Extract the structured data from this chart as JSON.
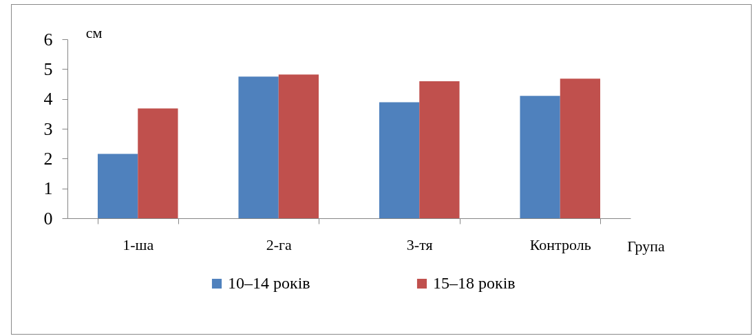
{
  "chart_data": {
    "type": "bar",
    "ylabel": "см",
    "xlabel": "Група",
    "categories": [
      "1-ша",
      "2-га",
      "3-тя",
      "Контроль"
    ],
    "series": [
      {
        "name": "10–14 років",
        "color": "#4f81bd",
        "values": [
          2.16,
          4.75,
          3.89,
          4.1
        ]
      },
      {
        "name": "15–18 років",
        "color": "#c0504d",
        "values": [
          3.68,
          4.82,
          4.59,
          4.68
        ]
      }
    ],
    "ylim": [
      0,
      6
    ],
    "yticks": [
      0,
      1,
      2,
      3,
      4,
      5,
      6
    ],
    "grid": false,
    "legend": "bottom"
  }
}
